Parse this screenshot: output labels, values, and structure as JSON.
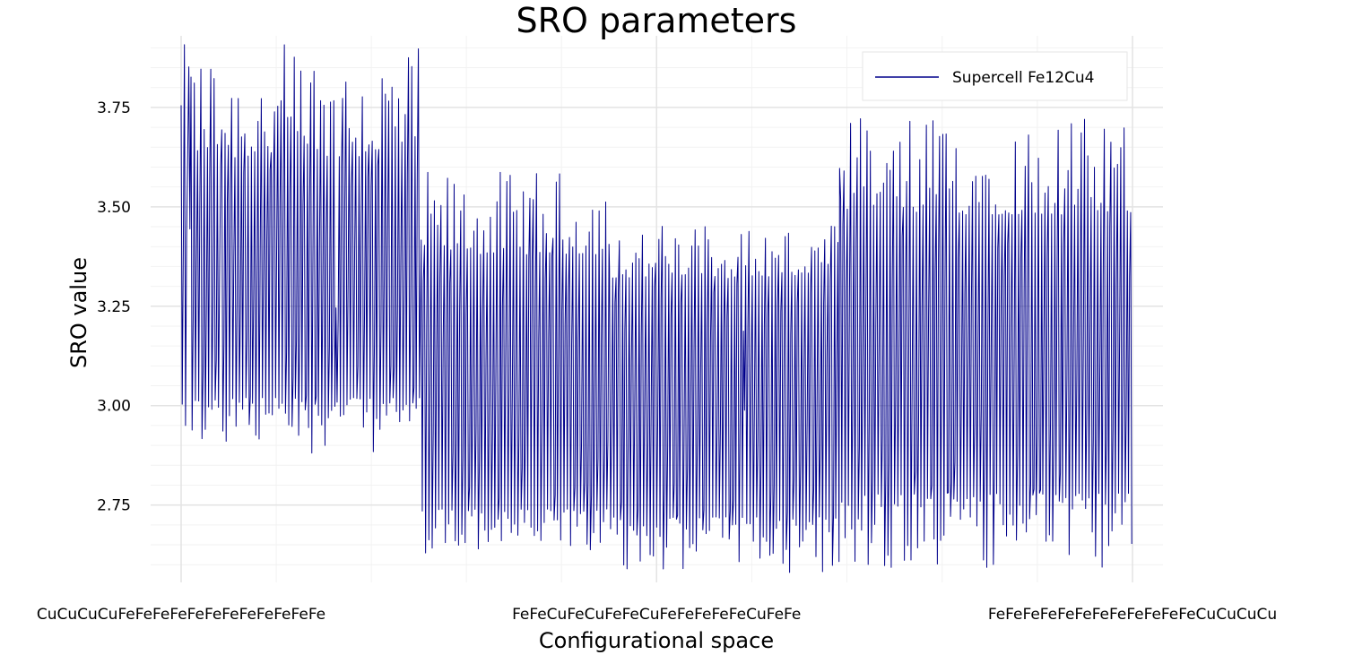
{
  "chart_data": {
    "type": "line",
    "title": "SRO parameters",
    "xlabel": "Configurational space",
    "ylabel": "SRO value",
    "ylim": [
      2.56,
      3.93
    ],
    "y_ticks": [
      2.75,
      3.0,
      3.25,
      3.5,
      3.75
    ],
    "y_tick_labels": [
      "2.75",
      "3.00",
      "3.25",
      "3.50",
      "3.75"
    ],
    "x_tick_labels": [
      "CuCuCuCuFeFeFeFeFeFeFeFeFeFeFeFe",
      "FeFeCuFeCuFeFeCuFeFeFeFeFeCuFeFe",
      "FeFeFeFeFeFeFeFeFeFeFeFeCuCuCuCu"
    ],
    "x_tick_positions": [
      1,
      910,
      1820
    ],
    "x_range": [
      1,
      1820
    ],
    "grid": true,
    "legend_position": "top-right",
    "series": [
      {
        "name": "Supercell Fe12Cu4",
        "color": "#00008b",
        "segments": [
          {
            "x_start": 1,
            "x_end": 460,
            "min": 2.88,
            "max": 3.91,
            "mean_low": 3.02,
            "mean_high": 3.62
          },
          {
            "x_start": 460,
            "x_end": 820,
            "min": 2.62,
            "max": 3.59,
            "mean_low": 2.74,
            "mean_high": 3.38
          },
          {
            "x_start": 820,
            "x_end": 1260,
            "min": 2.58,
            "max": 3.46,
            "mean_low": 2.72,
            "mean_high": 3.32
          },
          {
            "x_start": 1260,
            "x_end": 1820,
            "min": 2.57,
            "max": 3.73,
            "mean_low": 2.78,
            "mean_high": 3.48
          }
        ]
      }
    ]
  }
}
